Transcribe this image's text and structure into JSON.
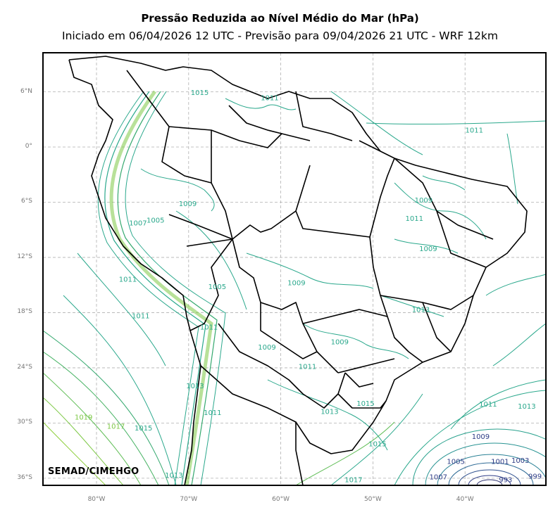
{
  "title": "Pressão Reduzida ao Nível Médio do Mar (hPa)",
  "subtitle": "Iniciado em 06/04/2026 12 UTC - Previsão para 09/04/2026 21 UTC - WRF 12km",
  "brand": "SEMAD/CIMEHGO",
  "lat_ticks": [
    "6°N",
    "0°",
    "6°S",
    "12°S",
    "18°S",
    "24°S",
    "30°S",
    "36°S"
  ],
  "lon_ticks": [
    "80°W",
    "70°W",
    "60°W",
    "50°W",
    "40°W"
  ],
  "colors": {
    "ocean_isobar": "#2aa88c",
    "high": "#7dc845",
    "low": "#2e3c86",
    "border": "#000000",
    "grid": "#b0b0b0"
  },
  "contour_labels": [
    {
      "text": "1015",
      "lon": -68.8,
      "lat": 5.9,
      "level": "mid"
    },
    {
      "text": "1011",
      "lon": -61.2,
      "lat": 5.3,
      "level": "mid"
    },
    {
      "text": "1011",
      "lon": -39.0,
      "lat": 1.8,
      "level": "mid"
    },
    {
      "text": "1009",
      "lon": -70.1,
      "lat": -6.2,
      "level": "mid"
    },
    {
      "text": "1007",
      "lon": -75.5,
      "lat": -8.3,
      "level": "mid"
    },
    {
      "text": "1005",
      "lon": -73.6,
      "lat": -8.0,
      "level": "mid"
    },
    {
      "text": "1009",
      "lon": -44.5,
      "lat": -5.8,
      "level": "mid"
    },
    {
      "text": "1011",
      "lon": -45.5,
      "lat": -7.8,
      "level": "mid"
    },
    {
      "text": "1009",
      "lon": -44.0,
      "lat": -11.1,
      "level": "mid"
    },
    {
      "text": "1011",
      "lon": -76.6,
      "lat": -14.4,
      "level": "mid"
    },
    {
      "text": "1005",
      "lon": -66.9,
      "lat": -15.2,
      "level": "mid"
    },
    {
      "text": "1009",
      "lon": -58.3,
      "lat": -14.8,
      "level": "mid"
    },
    {
      "text": "1013",
      "lon": -44.8,
      "lat": -17.7,
      "level": "mid"
    },
    {
      "text": "1011",
      "lon": -75.2,
      "lat": -18.4,
      "level": "mid"
    },
    {
      "text": "1011",
      "lon": -67.8,
      "lat": -19.6,
      "level": "mid"
    },
    {
      "text": "1009",
      "lon": -61.5,
      "lat": -21.8,
      "level": "mid"
    },
    {
      "text": "1009",
      "lon": -53.6,
      "lat": -21.2,
      "level": "mid"
    },
    {
      "text": "1011",
      "lon": -57.1,
      "lat": -23.9,
      "level": "mid"
    },
    {
      "text": "1013",
      "lon": -69.3,
      "lat": -26.0,
      "level": "mid"
    },
    {
      "text": "1013",
      "lon": -54.7,
      "lat": -28.8,
      "level": "mid"
    },
    {
      "text": "1015",
      "lon": -50.8,
      "lat": -27.9,
      "level": "mid"
    },
    {
      "text": "1011",
      "lon": -67.4,
      "lat": -28.9,
      "level": "mid"
    },
    {
      "text": "1011",
      "lon": -37.5,
      "lat": -28.0,
      "level": "mid"
    },
    {
      "text": "1013",
      "lon": -33.3,
      "lat": -28.2,
      "level": "mid"
    },
    {
      "text": "1019",
      "lon": -81.4,
      "lat": -29.4,
      "level": "high"
    },
    {
      "text": "1017",
      "lon": -77.9,
      "lat": -30.4,
      "level": "high"
    },
    {
      "text": "1015",
      "lon": -74.9,
      "lat": -30.6,
      "level": "mid"
    },
    {
      "text": "1015",
      "lon": -49.5,
      "lat": -32.3,
      "level": "mid"
    },
    {
      "text": "1009",
      "lon": -38.3,
      "lat": -31.5,
      "level": "low"
    },
    {
      "text": "1005",
      "lon": -41.0,
      "lat": -34.2,
      "level": "low"
    },
    {
      "text": "1001",
      "lon": -36.2,
      "lat": -34.2,
      "level": "low"
    },
    {
      "text": "1003",
      "lon": -34.0,
      "lat": -34.1,
      "level": "low"
    },
    {
      "text": "1007",
      "lon": -42.9,
      "lat": -35.9,
      "level": "low"
    },
    {
      "text": "999",
      "lon": -32.4,
      "lat": -35.8,
      "level": "low"
    },
    {
      "text": "993",
      "lon": -35.6,
      "lat": -36.2,
      "level": "low"
    },
    {
      "text": "1013",
      "lon": -71.6,
      "lat": -35.7,
      "level": "mid"
    },
    {
      "text": "1017",
      "lon": -52.1,
      "lat": -36.2,
      "level": "mid"
    }
  ]
}
